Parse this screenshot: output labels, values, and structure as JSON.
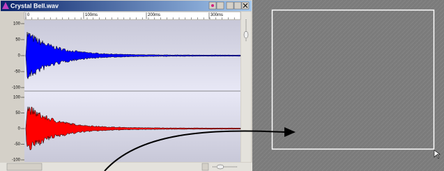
{
  "window": {
    "title": "Crystal Bell.wav"
  },
  "ruler": {
    "labels": [
      "0",
      "100ms",
      "200ms",
      "300ms"
    ]
  },
  "channels": [
    {
      "scale": [
        "100",
        "50",
        "0",
        "-50",
        "-100"
      ]
    },
    {
      "scale": [
        "100",
        "50",
        "0",
        "-50",
        "-100"
      ]
    }
  ]
}
